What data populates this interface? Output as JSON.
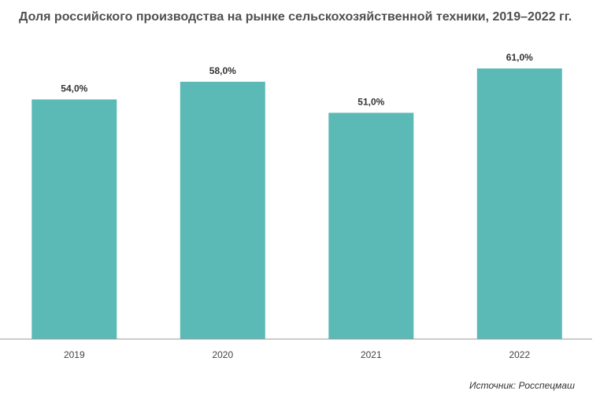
{
  "chart_data": {
    "type": "bar",
    "title": "Доля российского производства на рынке сельскохозяйственной техники, 2019–2022 гг.",
    "categories": [
      "2019",
      "2020",
      "2021",
      "2022"
    ],
    "values": [
      54.0,
      58.0,
      51.0,
      61.0
    ],
    "value_labels": [
      "54,0%",
      "58,0%",
      "51,0%",
      "61,0%"
    ],
    "unit": "%",
    "bar_color": "#5bbab5",
    "axis_color": "#999999",
    "grid": false,
    "legend": "none",
    "source": "Источник: Росспецмаш"
  }
}
